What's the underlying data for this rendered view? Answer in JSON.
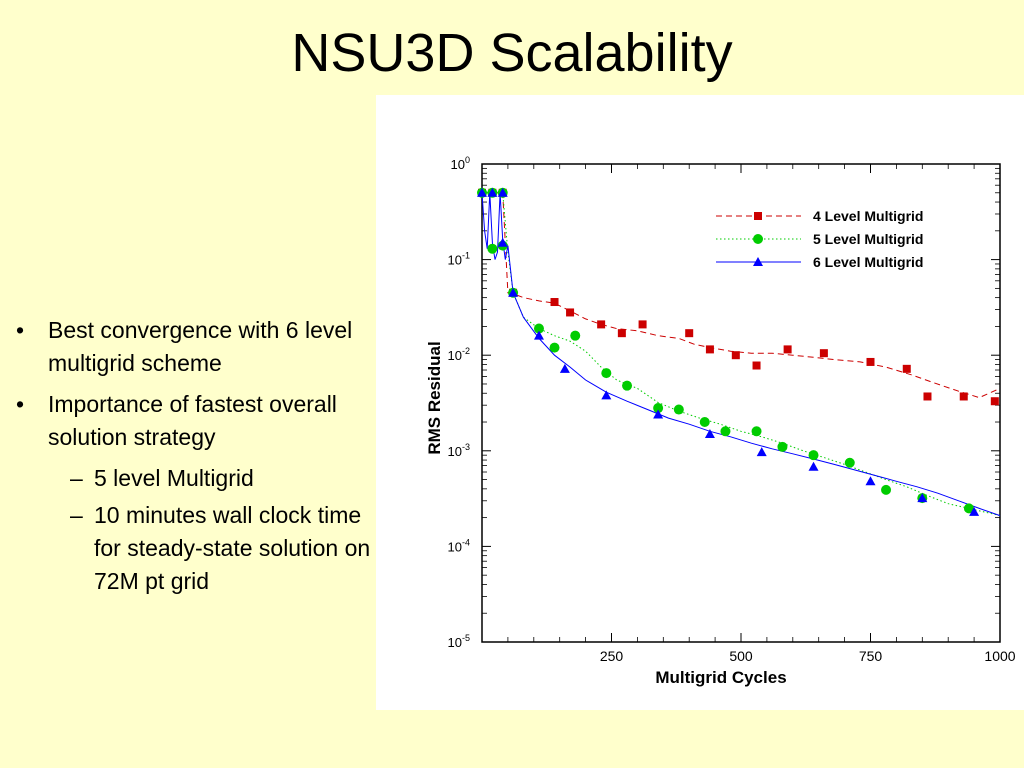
{
  "slide": {
    "title": "NSU3D Scalability",
    "bullets": [
      {
        "text": "Best convergence with 6 level multigrid scheme"
      },
      {
        "text": "Importance of fastest overall solution strategy"
      }
    ],
    "sub_bullets": [
      {
        "text": "5 level Multigrid"
      },
      {
        "text": "10 minutes wall clock time for steady-state solution on 72M pt grid"
      }
    ],
    "bullet_symbol": "•",
    "sub_bullet_symbol": "–"
  },
  "chart_data": {
    "type": "line",
    "title": "",
    "xlabel": "Multigrid Cycles",
    "ylabel": "RMS Residual",
    "xlim": [
      0,
      1000
    ],
    "ylim": [
      1e-05,
      1
    ],
    "yscale": "log",
    "grid": false,
    "legend_position": "top-right",
    "x_ticks": [
      {
        "value": 250,
        "label": "250"
      },
      {
        "value": 500,
        "label": "500"
      },
      {
        "value": 750,
        "label": "750"
      },
      {
        "value": 1000,
        "label": "1000"
      }
    ],
    "y_ticks": [
      {
        "exp": 0,
        "base": "10",
        "sup": "0"
      },
      {
        "exp": -1,
        "base": "10",
        "sup": "-1"
      },
      {
        "exp": -2,
        "base": "10",
        "sup": "-2"
      },
      {
        "exp": -3,
        "base": "10",
        "sup": "-3"
      },
      {
        "exp": -4,
        "base": "10",
        "sup": "-4"
      },
      {
        "exp": -5,
        "base": "10",
        "sup": "-5"
      }
    ],
    "series": [
      {
        "name": "4 Level Multigrid",
        "color": "#CC0000",
        "line_style": "dashed",
        "marker": "square",
        "x": [
          0,
          20,
          40,
          50,
          60,
          80,
          110,
          140,
          170,
          200,
          230,
          260,
          300,
          340,
          380,
          410,
          440,
          480,
          520,
          560,
          600,
          640,
          680,
          730,
          780,
          830,
          870,
          920,
          960,
          1000
        ],
        "y": [
          0.5,
          0.5,
          0.5,
          0.045,
          0.044,
          0.04,
          0.037,
          0.035,
          0.029,
          0.024,
          0.021,
          0.019,
          0.018,
          0.016,
          0.015,
          0.013,
          0.012,
          0.011,
          0.0105,
          0.0105,
          0.01,
          0.0095,
          0.009,
          0.0085,
          0.0075,
          0.0062,
          0.0052,
          0.0042,
          0.0036,
          0.0045
        ],
        "markers_x": [
          0,
          20,
          40,
          60,
          140,
          170,
          230,
          270,
          310,
          400,
          440,
          490,
          530,
          590,
          660,
          750,
          820,
          860,
          930,
          990
        ],
        "markers_y": [
          0.5,
          0.5,
          0.5,
          0.045,
          0.036,
          0.028,
          0.021,
          0.017,
          0.021,
          0.017,
          0.0115,
          0.01,
          0.0078,
          0.0115,
          0.0105,
          0.0085,
          0.0072,
          0.0037,
          0.0037,
          0.0033
        ]
      },
      {
        "name": "5 Level Multigrid",
        "color": "#00CC00",
        "line_style": "dotted",
        "marker": "circle",
        "x": [
          0,
          20,
          40,
          50,
          60,
          80,
          110,
          140,
          170,
          200,
          230,
          260,
          300,
          340,
          380,
          420,
          460,
          500,
          540,
          580,
          620,
          660,
          700,
          740,
          780,
          820,
          860,
          900,
          940,
          1000
        ],
        "y": [
          0.5,
          0.5,
          0.5,
          0.12,
          0.045,
          0.025,
          0.019,
          0.016,
          0.014,
          0.011,
          0.0075,
          0.0055,
          0.0045,
          0.0032,
          0.0026,
          0.0022,
          0.0019,
          0.0016,
          0.0014,
          0.0012,
          0.001,
          0.00085,
          0.00072,
          0.0006,
          0.0005,
          0.00042,
          0.00034,
          0.00028,
          0.00025,
          0.00021
        ],
        "markers_x": [
          0,
          20,
          40,
          20,
          40,
          60,
          110,
          140,
          180,
          240,
          280,
          340,
          380,
          430,
          470,
          530,
          580,
          640,
          710,
          780,
          850,
          940
        ],
        "markers_y": [
          0.5,
          0.5,
          0.5,
          0.13,
          0.14,
          0.045,
          0.019,
          0.012,
          0.016,
          0.0065,
          0.0048,
          0.0028,
          0.0027,
          0.002,
          0.0016,
          0.0016,
          0.0011,
          0.0009,
          0.00075,
          0.00039,
          0.00032,
          0.00025
        ]
      },
      {
        "name": "6 Level Multigrid",
        "color": "#0000FF",
        "line_style": "solid",
        "marker": "triangle",
        "x": [
          0,
          5,
          10,
          15,
          20,
          25,
          30,
          35,
          40,
          45,
          50,
          60,
          80,
          110,
          140,
          170,
          200,
          240,
          280,
          320,
          360,
          400,
          440,
          480,
          520,
          560,
          600,
          640,
          680,
          720,
          760,
          800,
          840,
          880,
          920,
          960,
          1000
        ],
        "y": [
          0.5,
          0.2,
          0.13,
          0.5,
          0.15,
          0.1,
          0.12,
          0.5,
          0.16,
          0.1,
          0.14,
          0.045,
          0.025,
          0.015,
          0.01,
          0.0075,
          0.0055,
          0.0041,
          0.0033,
          0.0027,
          0.0022,
          0.0019,
          0.0016,
          0.0014,
          0.0012,
          0.00105,
          0.00093,
          0.00082,
          0.00072,
          0.00063,
          0.00055,
          0.00048,
          0.00042,
          0.00036,
          0.0003,
          0.00025,
          0.00021
        ],
        "markers_x": [
          0,
          20,
          40,
          40,
          60,
          110,
          160,
          240,
          340,
          440,
          540,
          640,
          750,
          850,
          950
        ],
        "markers_y": [
          0.5,
          0.5,
          0.5,
          0.15,
          0.045,
          0.016,
          0.0072,
          0.0038,
          0.0024,
          0.0015,
          0.00097,
          0.00068,
          0.00048,
          0.00032,
          0.00023
        ]
      }
    ]
  }
}
